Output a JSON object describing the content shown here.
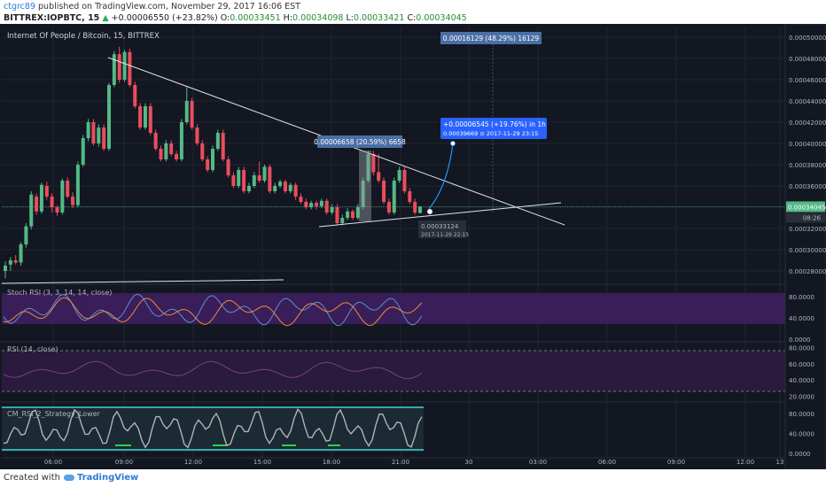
{
  "header": {
    "user": "ctgrc89",
    "published_text": " published on TradingView.com, November 29, 2017 16:06 EST",
    "symbol": "BITTREX:IOPBTC, 15",
    "change_arrow": "▲",
    "change": "+0.00006550 (+23.82%)",
    "o_label": "O:",
    "o_value": "0.00033451",
    "h_label": "H:",
    "h_value": "0.00034098",
    "l_label": "L:",
    "l_value": "0.00033421",
    "c_label": "C:",
    "c_value": "0.00034045"
  },
  "footer": {
    "created_with": "Created with",
    "brand": "TradingView"
  },
  "colors": {
    "background": "#131722",
    "up": "#53b987",
    "down": "#eb4d5c",
    "grid": "#1f2430",
    "axis_text": "#b2b5be",
    "trend": "#e0e3eb",
    "label_box": "#4a6fa5",
    "forecast": "#2196f3",
    "stoch_k": "#5b8fd6",
    "stoch_d": "#e88f3f",
    "rsi_line": "#7a3f8a",
    "purple_band": "#3a1e59",
    "cm_line": "#b0b3ba",
    "cm_green": "#2ed14a",
    "cm_cyan": "#3fd4d4"
  },
  "chart_data": {
    "type": "candlestick",
    "title": "Internet Of People / Bitcoin, 15, BITTREX",
    "x_ticks": [
      "06:00",
      "09:00",
      "12:00",
      "15:00",
      "18:00",
      "21:00",
      "30",
      "03:00",
      "06:00",
      "09:00",
      "12:00",
      "13"
    ],
    "y_ticks": [
      "0.00050000",
      "0.00048000",
      "0.00046000",
      "0.00044000",
      "0.00042000",
      "0.00040000",
      "0.00038000",
      "0.00036000",
      "0.00034000",
      "0.00032000",
      "0.00030000",
      "0.00028000"
    ],
    "ylim": [
      0.00027,
      0.00051
    ],
    "last_price_label": "0.00034045",
    "last_price_value": 0.00034045,
    "time_to_close": "08:26",
    "candles": [
      {
        "o": 0.00028,
        "h": 0.000289,
        "l": 0.000273,
        "c": 0.000285
      },
      {
        "o": 0.000286,
        "h": 0.000293,
        "l": 0.00028,
        "c": 0.00029
      },
      {
        "o": 0.00029,
        "h": 0.000295,
        "l": 0.000286,
        "c": 0.000288
      },
      {
        "o": 0.000288,
        "h": 0.000307,
        "l": 0.000285,
        "c": 0.000305
      },
      {
        "o": 0.000305,
        "h": 0.000325,
        "l": 0.000302,
        "c": 0.000322
      },
      {
        "o": 0.000322,
        "h": 0.000355,
        "l": 0.000319,
        "c": 0.000352
      },
      {
        "o": 0.00035,
        "h": 0.000353,
        "l": 0.000333,
        "c": 0.000336
      },
      {
        "o": 0.000336,
        "h": 0.000363,
        "l": 0.000334,
        "c": 0.000361
      },
      {
        "o": 0.00036,
        "h": 0.000364,
        "l": 0.000347,
        "c": 0.00035
      },
      {
        "o": 0.00035,
        "h": 0.000353,
        "l": 0.000335,
        "c": 0.00034
      },
      {
        "o": 0.00034,
        "h": 0.000342,
        "l": 0.000332,
        "c": 0.000335
      },
      {
        "o": 0.000335,
        "h": 0.000367,
        "l": 0.000333,
        "c": 0.000365
      },
      {
        "o": 0.000365,
        "h": 0.000368,
        "l": 0.000348,
        "c": 0.00035
      },
      {
        "o": 0.00035,
        "h": 0.000354,
        "l": 0.000339,
        "c": 0.000342
      },
      {
        "o": 0.000342,
        "h": 0.000383,
        "l": 0.00034,
        "c": 0.00038
      },
      {
        "o": 0.00038,
        "h": 0.000408,
        "l": 0.000378,
        "c": 0.000405
      },
      {
        "o": 0.000405,
        "h": 0.000423,
        "l": 0.000402,
        "c": 0.00042
      },
      {
        "o": 0.00042,
        "h": 0.000423,
        "l": 0.000398,
        "c": 0.0004
      },
      {
        "o": 0.0004,
        "h": 0.000418,
        "l": 0.000397,
        "c": 0.000415
      },
      {
        "o": 0.000415,
        "h": 0.000418,
        "l": 0.000393,
        "c": 0.000395
      },
      {
        "o": 0.000395,
        "h": 0.000457,
        "l": 0.000393,
        "c": 0.000455
      },
      {
        "o": 0.000455,
        "h": 0.000487,
        "l": 0.000453,
        "c": 0.000484
      },
      {
        "o": 0.000484,
        "h": 0.000491,
        "l": 0.000457,
        "c": 0.00046
      },
      {
        "o": 0.00046,
        "h": 0.000488,
        "l": 0.000458,
        "c": 0.000486
      },
      {
        "o": 0.000486,
        "h": 0.000489,
        "l": 0.000453,
        "c": 0.000455
      },
      {
        "o": 0.000455,
        "h": 0.000458,
        "l": 0.000433,
        "c": 0.000435
      },
      {
        "o": 0.000435,
        "h": 0.000438,
        "l": 0.000413,
        "c": 0.000415
      },
      {
        "o": 0.000415,
        "h": 0.000438,
        "l": 0.000413,
        "c": 0.000435
      },
      {
        "o": 0.000435,
        "h": 0.000438,
        "l": 0.000408,
        "c": 0.00041
      },
      {
        "o": 0.00041,
        "h": 0.000413,
        "l": 0.000393,
        "c": 0.000395
      },
      {
        "o": 0.000395,
        "h": 0.000398,
        "l": 0.000383,
        "c": 0.000385
      },
      {
        "o": 0.000385,
        "h": 0.000403,
        "l": 0.000383,
        "c": 0.0004
      },
      {
        "o": 0.0004,
        "h": 0.000403,
        "l": 0.000388,
        "c": 0.00039
      },
      {
        "o": 0.00039,
        "h": 0.000393,
        "l": 0.000383,
        "c": 0.000385
      },
      {
        "o": 0.000385,
        "h": 0.000423,
        "l": 0.000383,
        "c": 0.00042
      },
      {
        "o": 0.00042,
        "h": 0.000453,
        "l": 0.000418,
        "c": 0.00044
      },
      {
        "o": 0.00044,
        "h": 0.000443,
        "l": 0.000413,
        "c": 0.000415
      },
      {
        "o": 0.000415,
        "h": 0.000418,
        "l": 0.000398,
        "c": 0.0004
      },
      {
        "o": 0.0004,
        "h": 0.000403,
        "l": 0.000383,
        "c": 0.000385
      },
      {
        "o": 0.000385,
        "h": 0.000388,
        "l": 0.000373,
        "c": 0.000375
      },
      {
        "o": 0.000375,
        "h": 0.000398,
        "l": 0.000373,
        "c": 0.000395
      },
      {
        "o": 0.000395,
        "h": 0.000413,
        "l": 0.000393,
        "c": 0.00041
      },
      {
        "o": 0.00041,
        "h": 0.000413,
        "l": 0.000383,
        "c": 0.000385
      },
      {
        "o": 0.000385,
        "h": 0.000388,
        "l": 0.000368,
        "c": 0.00037
      },
      {
        "o": 0.00037,
        "h": 0.000373,
        "l": 0.000358,
        "c": 0.00036
      },
      {
        "o": 0.00036,
        "h": 0.000378,
        "l": 0.000358,
        "c": 0.000375
      },
      {
        "o": 0.000375,
        "h": 0.000378,
        "l": 0.000353,
        "c": 0.000355
      },
      {
        "o": 0.000355,
        "h": 0.000363,
        "l": 0.000353,
        "c": 0.00036
      },
      {
        "o": 0.00036,
        "h": 0.000373,
        "l": 0.000358,
        "c": 0.00037
      },
      {
        "o": 0.00037,
        "h": 0.000383,
        "l": 0.000363,
        "c": 0.000365
      },
      {
        "o": 0.000365,
        "h": 0.00038,
        "l": 0.000363,
        "c": 0.000378
      },
      {
        "o": 0.000378,
        "h": 0.00038,
        "l": 0.000353,
        "c": 0.000355
      },
      {
        "o": 0.000355,
        "h": 0.000363,
        "l": 0.000353,
        "c": 0.00036
      },
      {
        "o": 0.00036,
        "h": 0.000366,
        "l": 0.000358,
        "c": 0.000364
      },
      {
        "o": 0.000364,
        "h": 0.000366,
        "l": 0.000353,
        "c": 0.000355
      },
      {
        "o": 0.000355,
        "h": 0.000363,
        "l": 0.000353,
        "c": 0.000361
      },
      {
        "o": 0.000361,
        "h": 0.000363,
        "l": 0.000347,
        "c": 0.00035
      },
      {
        "o": 0.00035,
        "h": 0.000353,
        "l": 0.000343,
        "c": 0.000345
      },
      {
        "o": 0.000345,
        "h": 0.000348,
        "l": 0.000338,
        "c": 0.00034
      },
      {
        "o": 0.00034,
        "h": 0.000346,
        "l": 0.000338,
        "c": 0.000344
      },
      {
        "o": 0.000344,
        "h": 0.000346,
        "l": 0.000338,
        "c": 0.000341
      },
      {
        "o": 0.000341,
        "h": 0.000348,
        "l": 0.000339,
        "c": 0.000346
      },
      {
        "o": 0.000346,
        "h": 0.000348,
        "l": 0.000333,
        "c": 0.000335
      },
      {
        "o": 0.000335,
        "h": 0.000343,
        "l": 0.000333,
        "c": 0.00034
      },
      {
        "o": 0.00034,
        "h": 0.000343,
        "l": 0.000323,
        "c": 0.000325
      },
      {
        "o": 0.000325,
        "h": 0.000333,
        "l": 0.000323,
        "c": 0.00033
      },
      {
        "o": 0.00033,
        "h": 0.000339,
        "l": 0.000328,
        "c": 0.000336
      },
      {
        "o": 0.000336,
        "h": 0.000338,
        "l": 0.000328,
        "c": 0.00033
      },
      {
        "o": 0.00033,
        "h": 0.000343,
        "l": 0.000328,
        "c": 0.00034
      },
      {
        "o": 0.00034,
        "h": 0.000368,
        "l": 0.000338,
        "c": 0.000365
      },
      {
        "o": 0.000365,
        "h": 0.000393,
        "l": 0.000363,
        "c": 0.00039
      },
      {
        "o": 0.00039,
        "h": 0.000393,
        "l": 0.00037,
        "c": 0.000373
      },
      {
        "o": 0.000373,
        "h": 0.00039,
        "l": 0.000363,
        "c": 0.000365
      },
      {
        "o": 0.000365,
        "h": 0.000368,
        "l": 0.000343,
        "c": 0.000345
      },
      {
        "o": 0.000345,
        "h": 0.000348,
        "l": 0.000333,
        "c": 0.000335
      },
      {
        "o": 0.000335,
        "h": 0.000368,
        "l": 0.000333,
        "c": 0.000365
      },
      {
        "o": 0.000365,
        "h": 0.000378,
        "l": 0.000363,
        "c": 0.000375
      },
      {
        "o": 0.000375,
        "h": 0.000378,
        "l": 0.000353,
        "c": 0.000355
      },
      {
        "o": 0.000355,
        "h": 0.000358,
        "l": 0.000343,
        "c": 0.000345
      },
      {
        "o": 0.000345,
        "h": 0.000348,
        "l": 0.000333,
        "c": 0.000335
      },
      {
        "o": 0.00033451,
        "h": 0.00034098,
        "l": 0.00033421,
        "c": 0.00034045
      }
    ],
    "annotations": {
      "top_range_label": "0.00016129 (48.29%) 16129",
      "mid_range_label": "0.00006658 (20.59%) 6658",
      "forecast_label_1": "+0.00006545 (+19.76%) in 1h",
      "forecast_label_2": "0.00039669 ⊙ 2017-11-29 23:15",
      "low_label_1": "0.00033124",
      "low_label_2": "2017-11-29 22:15"
    },
    "panes": {
      "stoch": {
        "title": "Stoch RSI (3, 3, 14, 14, close)",
        "ticks": [
          "80.0000",
          "40.0000",
          "0.0000"
        ],
        "range": [
          0,
          100
        ]
      },
      "rsi": {
        "title": "RSI (14, close)",
        "ticks": [
          "80.0000",
          "60.0000",
          "40.0000",
          "20.0000"
        ],
        "range": [
          15,
          85
        ]
      },
      "cm": {
        "title": "CM_RSI_2_Strategy_Lower",
        "ticks": [
          "80.0000",
          "40.0000",
          "0.0000"
        ],
        "range": [
          -5,
          100
        ]
      }
    }
  }
}
